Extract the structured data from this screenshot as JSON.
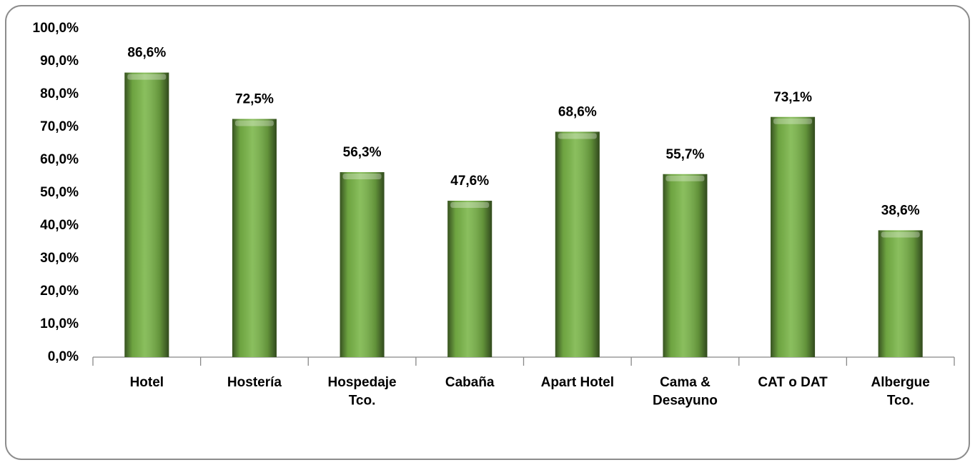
{
  "chart_data": {
    "type": "bar",
    "categories": [
      "Hotel",
      "Hostería",
      "Hospedaje\nTco.",
      "Cabaña",
      "Apart Hotel",
      "Cama &\nDesayuno",
      "CAT o DAT",
      "Albergue\nTco."
    ],
    "values": [
      86.6,
      72.5,
      56.3,
      47.6,
      68.6,
      55.7,
      73.1,
      38.6
    ],
    "value_labels": [
      "86,6%",
      "72,5%",
      "56,3%",
      "47,6%",
      "68,6%",
      "55,7%",
      "73,1%",
      "38,6%"
    ],
    "color": "#7ab648",
    "ylim": [
      0,
      100
    ],
    "yticks": [
      {
        "value": 0,
        "label": "0,0%"
      },
      {
        "value": 10,
        "label": "10,0%"
      },
      {
        "value": 20,
        "label": "20,0%"
      },
      {
        "value": 30,
        "label": "30,0%"
      },
      {
        "value": 40,
        "label": "40,0%"
      },
      {
        "value": 50,
        "label": "50,0%"
      },
      {
        "value": 60,
        "label": "60,0%"
      },
      {
        "value": 70,
        "label": "70,0%"
      },
      {
        "value": 80,
        "label": "80,0%"
      },
      {
        "value": 90,
        "label": "90,0%"
      },
      {
        "value": 100,
        "label": "100,0%"
      }
    ],
    "grid": false
  }
}
